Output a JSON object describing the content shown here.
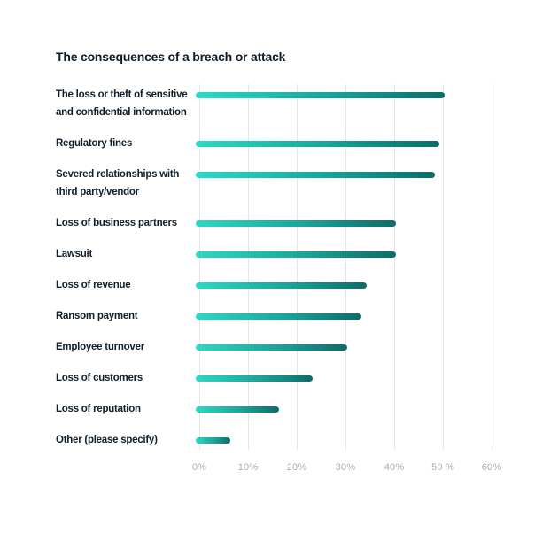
{
  "chart_data": {
    "type": "bar",
    "orientation": "horizontal",
    "title": "The consequences of a breach or attack",
    "categories": [
      "The loss or theft of sensitive and confidential information",
      "Regulatory fines",
      "Severed relationships with third party/vendor",
      "Loss of business partners",
      "Lawsuit",
      "Loss of revenue",
      "Ransom payment",
      "Employee turnover",
      "Loss of customers",
      "Loss of reputation",
      "Other (please specify)"
    ],
    "category_lines": [
      [
        "The loss or theft of sensitive",
        "and confidential information"
      ],
      [
        "Regulatory fines"
      ],
      [
        "Severed relationships with",
        "third party/vendor"
      ],
      [
        "Loss of business partners"
      ],
      [
        "Lawsuit"
      ],
      [
        "Loss of revenue"
      ],
      [
        "Ransom payment"
      ],
      [
        "Employee turnover"
      ],
      [
        "Loss of customers"
      ],
      [
        "Loss of reputation"
      ],
      [
        "Other (please specify)"
      ]
    ],
    "values": [
      51,
      50,
      49,
      41,
      41,
      35,
      34,
      31,
      24,
      17,
      7
    ],
    "value_unit": "%",
    "xlabel": "",
    "ylabel": "",
    "xlim": [
      0,
      60
    ],
    "x_ticks": [
      "0%",
      "10%",
      "20%",
      "30%",
      "40%",
      "50 %",
      "60%"
    ],
    "grid": "vertical-gridlines-on",
    "legend": "none",
    "colors": {
      "bar_gradient_start": "#2cd9c5",
      "bar_gradient_end": "#0d6c68",
      "title_text": "#0d1b27",
      "label_text": "#101f2c",
      "tick_text": "#a7aeb5",
      "gridline": "#e4e6e9",
      "background": "#ffffff"
    }
  }
}
